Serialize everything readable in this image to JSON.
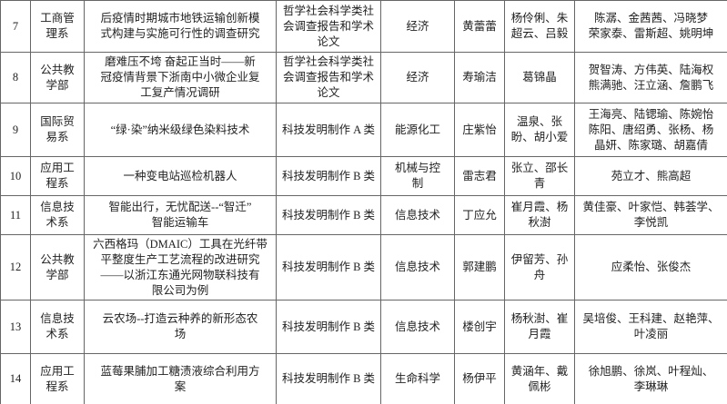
{
  "table": {
    "rows": [
      [
        7,
        [
          "工商管",
          "理系"
        ],
        [
          "后疫情时期城市地铁运输创新模",
          "式构建与实施可行性的调查研究"
        ],
        [
          "哲学社会科学类社",
          "会调查报告和学术",
          "论文"
        ],
        [
          "经济"
        ],
        [
          "黄蕾蕾"
        ],
        [
          "杨伶俐、朱",
          "超云、吕毅"
        ],
        [
          "陈潺、金茜茜、冯晓梦",
          "荣家泰、雷斯超、姚明坤"
        ]
      ],
      [
        8,
        [
          "公共教",
          "学部"
        ],
        [
          "磨难压不垮 奋起正当时——新",
          "冠疫情背景下浙南中小微企业复",
          "工复产情况调研"
        ],
        [
          "哲学社会科学类社",
          "会调查报告和学术",
          "论文"
        ],
        [
          "经济"
        ],
        [
          "寿瑜洁"
        ],
        [
          "葛锦晶"
        ],
        [
          "贺智涛、方伟英、陆海权",
          "熊满驰、汪立涵、詹鹏飞"
        ]
      ],
      [
        9,
        [
          "国际贸",
          "易系"
        ],
        [
          "“绿·染”纳米级绿色染料技术"
        ],
        [
          "科技发明制作 A 类"
        ],
        [
          "能源化工"
        ],
        [
          "庄紫怡"
        ],
        [
          "温泉、张",
          "盼、胡小爱"
        ],
        [
          "王海亮、陆锶瑜、陈婉怡",
          "陈阳、唐绍勇、张杨、杨",
          "晶妍、陈家璐、胡嘉倩"
        ]
      ],
      [
        10,
        [
          "应用工",
          "程系"
        ],
        [
          "一种变电站巡检机器人"
        ],
        [
          "科技发明制作 B 类"
        ],
        [
          "机械与控",
          "制"
        ],
        [
          "雷志君"
        ],
        [
          "张立、邵长",
          "青"
        ],
        [
          "苑立才、熊高超"
        ]
      ],
      [
        11,
        [
          "信息技",
          "术系"
        ],
        [
          "智能出行，无忧配送--“智迁”",
          "智能运输车"
        ],
        [
          "科技发明制作 B 类"
        ],
        [
          "信息技术"
        ],
        [
          "丁应允"
        ],
        [
          "崔月霞、杨",
          "秋澍"
        ],
        [
          "黄佳豪、叶家恺、韩荟学、",
          "李悦凯"
        ]
      ],
      [
        12,
        [
          "公共教",
          "学部"
        ],
        [
          "六西格玛（DMAIC）工具在光纤带",
          "平整度生产工艺流程的改进研究",
          "——以浙江东通光网物联科技有",
          "限公司为例"
        ],
        [
          "科技发明制作 B 类"
        ],
        [
          "信息技术"
        ],
        [
          "郭建鹏"
        ],
        [
          "伊留芳、孙",
          "舟"
        ],
        [
          "应柔怡、张俊杰"
        ]
      ],
      [
        13,
        [
          "信息技",
          "术系"
        ],
        [
          "云农场--打造云种养的新形态农",
          "场"
        ],
        [
          "科技发明制作 B 类"
        ],
        [
          "信息技术"
        ],
        [
          "楼创宇"
        ],
        [
          "杨秋澍、崔",
          "月霞"
        ],
        [
          "吴培俊、王科建、赵艳萍、",
          "叶凌丽"
        ]
      ],
      [
        14,
        [
          "应用工",
          "程系"
        ],
        [
          "蓝莓果脯加工糖渍液综合利用方",
          "案"
        ],
        [
          "科技发明制作 B 类"
        ],
        [
          "生命科学"
        ],
        [
          "杨伊平"
        ],
        [
          "黄涵年、戴",
          "佩彬"
        ],
        [
          "徐旭鹏、徐岚、叶程灿、",
          "李琳琳"
        ]
      ]
    ]
  }
}
